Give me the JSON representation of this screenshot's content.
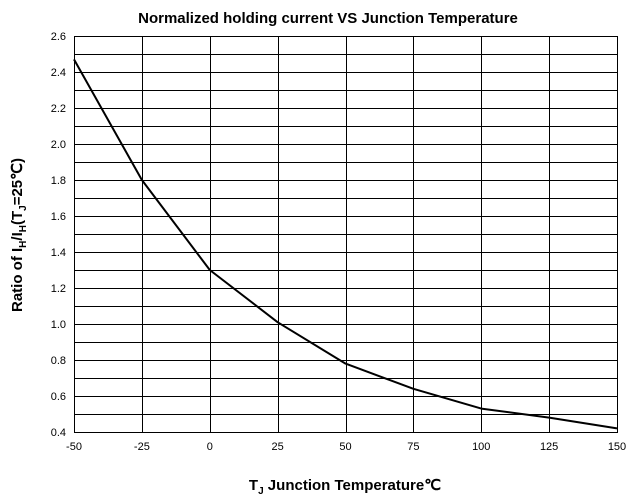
{
  "chart_data": {
    "type": "line",
    "title": "Normalized holding current VS Junction Temperature",
    "xlabel": {
      "prefix": "T",
      "sub": "J",
      "suffix": " Junction Temperature℃"
    },
    "ylabel": {
      "p1": "Ratio of I",
      "s1": "H",
      "p2": "/I",
      "s2": "H",
      "p3": "(T",
      "s3": "J",
      "p4": "=25℃)"
    },
    "xlim": [
      -50,
      150
    ],
    "ylim": [
      0.4,
      2.6
    ],
    "x_ticks": [
      -50,
      -25,
      0,
      25,
      50,
      75,
      100,
      125,
      150
    ],
    "x_tick_labels": [
      "-50",
      "-25",
      "0",
      "25",
      "50",
      "75",
      "100",
      "125",
      "150"
    ],
    "y_ticks": [
      0.4,
      0.6,
      0.8,
      1.0,
      1.2,
      1.4,
      1.6,
      1.8,
      2.0,
      2.2,
      2.4,
      2.6
    ],
    "y_tick_labels": [
      "0.4",
      "0.6",
      "0.8",
      "1.0",
      "1.2",
      "1.4",
      "1.6",
      "1.8",
      "2.0",
      "2.2",
      "2.4",
      "2.6"
    ],
    "y_minor_step": 0.1,
    "grid": true,
    "series": [
      {
        "x": [
          -50,
          -25,
          0,
          25,
          50,
          75,
          100,
          125,
          150
        ],
        "values": [
          2.47,
          1.8,
          1.3,
          1.01,
          0.78,
          0.64,
          0.53,
          0.48,
          0.42
        ]
      }
    ],
    "colors": {
      "line": "#000000",
      "grid": "#000000"
    }
  }
}
